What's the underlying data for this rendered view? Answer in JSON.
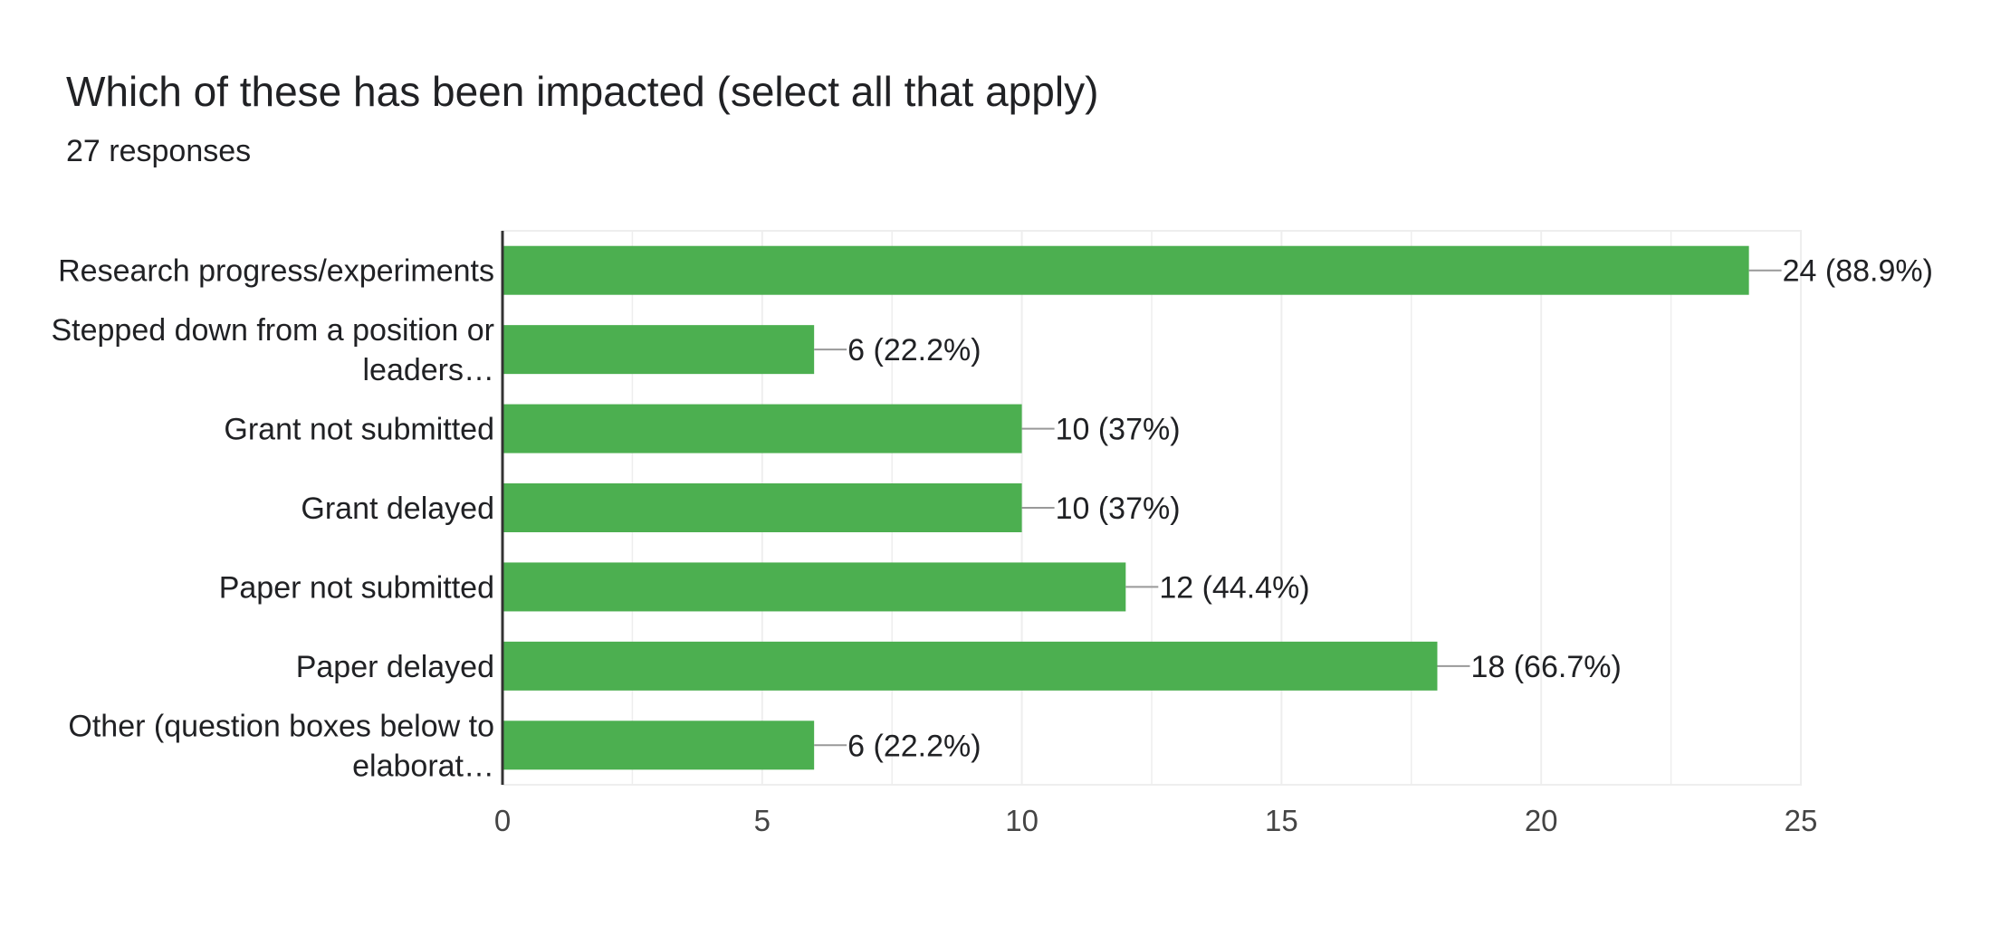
{
  "question": {
    "title": "Which of these has been impacted (select all that apply)",
    "responses": "27 responses"
  },
  "chart_data": {
    "type": "bar",
    "orientation": "horizontal",
    "categories": [
      [
        "Research progress/experiments"
      ],
      [
        "Stepped down from a position or",
        "leaders…"
      ],
      [
        "Grant not submitted"
      ],
      [
        "Grant delayed"
      ],
      [
        "Paper not submitted"
      ],
      [
        "Paper delayed"
      ],
      [
        "Other (question boxes below to",
        "elaborat…"
      ]
    ],
    "values": [
      24,
      6,
      10,
      10,
      12,
      18,
      6
    ],
    "data_labels": [
      "24 (88.9%)",
      "6 (22.2%)",
      "10 (37%)",
      "10 (37%)",
      "12 (44.4%)",
      "18 (66.7%)",
      "6 (22.2%)"
    ],
    "xlim": [
      0,
      25
    ],
    "xticks": [
      0,
      5,
      10,
      15,
      20,
      25
    ],
    "grid": true,
    "bar_color": "#4caf50",
    "gridline_color": "#eeeeee",
    "axis_color": "#333333",
    "leader_color": "#999999"
  }
}
